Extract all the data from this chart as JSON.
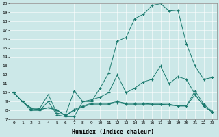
{
  "xlabel": "Humidex (Indice chaleur)",
  "bg_color": "#cce8e8",
  "line_color": "#1a7a6e",
  "xlim": [
    -0.5,
    23.5
  ],
  "ylim": [
    7,
    20
  ],
  "xticks": [
    0,
    1,
    2,
    3,
    4,
    5,
    6,
    7,
    8,
    9,
    10,
    11,
    12,
    13,
    14,
    15,
    16,
    17,
    18,
    19,
    20,
    21,
    22,
    23
  ],
  "yticks": [
    7,
    8,
    9,
    10,
    11,
    12,
    13,
    14,
    15,
    16,
    17,
    18,
    19,
    20
  ],
  "lines": [
    {
      "x": [
        0,
        1,
        2,
        3,
        4,
        5,
        6,
        7,
        8,
        9,
        10,
        11,
        12,
        13,
        14,
        15,
        16,
        17,
        18,
        19,
        20,
        21,
        22,
        23
      ],
      "y": [
        10,
        9,
        8,
        8,
        9,
        7.5,
        7.3,
        7.3,
        9,
        9,
        10.5,
        12.2,
        15.8,
        16.2,
        18.3,
        18.8,
        19.8,
        20.0,
        19.2,
        19.3,
        15.5,
        13.0,
        11.5,
        11.7
      ]
    },
    {
      "x": [
        0,
        1,
        2,
        3,
        4,
        5,
        6,
        7,
        8,
        9,
        10,
        11,
        12,
        13,
        14,
        15,
        16,
        17,
        18,
        19,
        20,
        21,
        22,
        23
      ],
      "y": [
        10,
        9,
        8.3,
        8.2,
        9.8,
        7.7,
        7.5,
        10.2,
        9,
        9.2,
        9.5,
        10.0,
        12,
        10,
        10.5,
        11.2,
        11.5,
        13.0,
        11.0,
        11.8,
        11.5,
        9.8,
        8.5,
        7.8
      ]
    },
    {
      "x": [
        0,
        1,
        2,
        3,
        4,
        5,
        6,
        7,
        8,
        9,
        10,
        11,
        12,
        13,
        14,
        15,
        16,
        17,
        18,
        19,
        20,
        21,
        22,
        23
      ],
      "y": [
        10,
        9,
        8.2,
        8.1,
        8.3,
        8.1,
        7.4,
        8.1,
        8.5,
        8.8,
        8.8,
        8.8,
        9.0,
        8.8,
        8.8,
        8.8,
        8.7,
        8.7,
        8.7,
        8.5,
        8.5,
        10.2,
        8.7,
        7.9
      ]
    },
    {
      "x": [
        0,
        1,
        2,
        3,
        4,
        5,
        6,
        7,
        8,
        9,
        10,
        11,
        12,
        13,
        14,
        15,
        16,
        17,
        18,
        19,
        20,
        21,
        22,
        23
      ],
      "y": [
        10,
        9,
        8.2,
        8.1,
        8.3,
        8.0,
        7.4,
        8.0,
        8.4,
        8.7,
        8.7,
        8.7,
        8.9,
        8.7,
        8.7,
        8.7,
        8.7,
        8.7,
        8.6,
        8.5,
        8.5,
        9.8,
        8.5,
        7.8
      ]
    }
  ]
}
